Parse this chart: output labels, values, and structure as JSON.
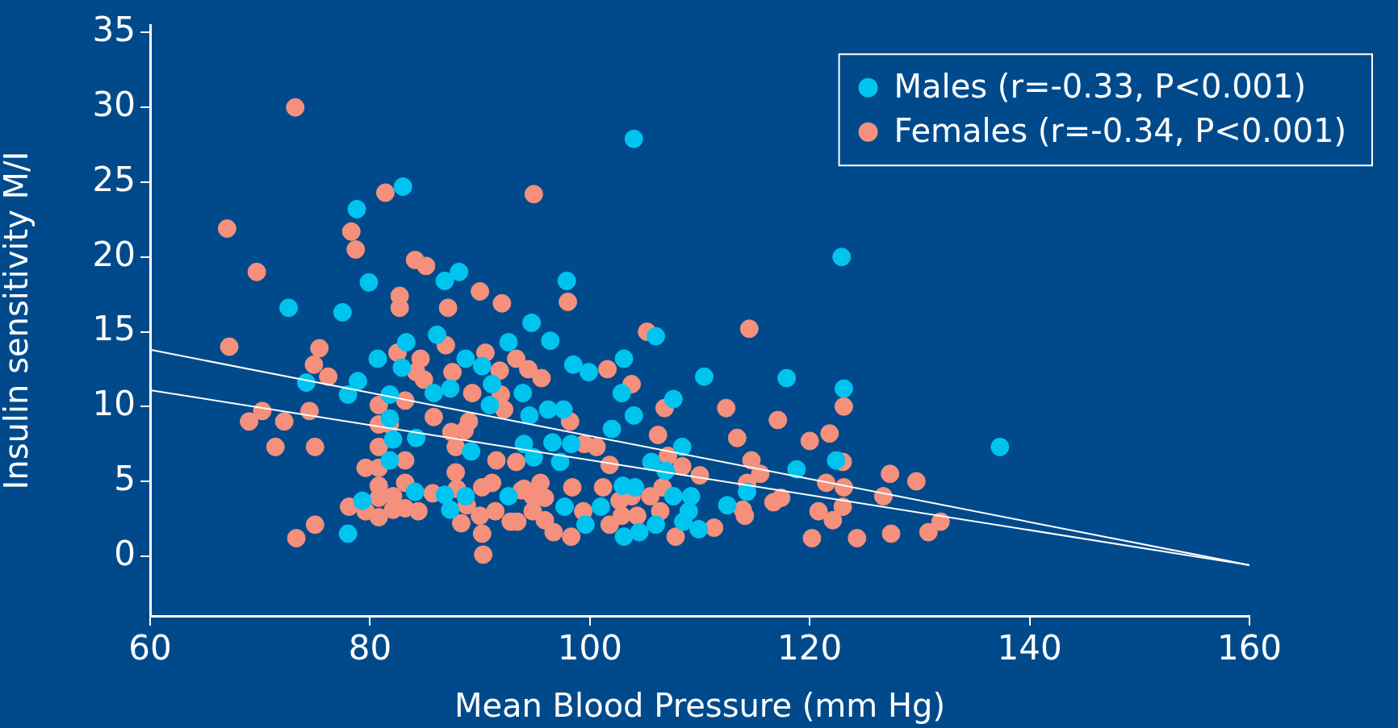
{
  "chart_data": {
    "type": "scatter",
    "xlabel": "Mean Blood Pressure (mm Hg)",
    "ylabel": "Insulin sensitivity M/I",
    "xlim": [
      60,
      160
    ],
    "xticks": [
      60,
      80,
      100,
      120,
      140,
      160
    ],
    "ylim": [
      -4,
      35.5
    ],
    "yticks": [
      0,
      5,
      10,
      15,
      20,
      25,
      30,
      35
    ],
    "grid": false,
    "legend": "top right",
    "marker": "circle",
    "series": [
      {
        "name": "Males (r=-0.33, P<0.001)",
        "color": "#00c4f0",
        "x": [
          83.0,
          78.8,
          104.0,
          122.9,
          137.3,
          72.6,
          77.5,
          79.9,
          88.1,
          86.8,
          97.9,
          74.2,
          78.9,
          78.0,
          80.7,
          81.8,
          82.9,
          83.3,
          86.1,
          88.7,
          90.2,
          91.1,
          92.6,
          94.7,
          96.4,
          87.3,
          85.8,
          93.9,
          90.9,
          94.5,
          96.2,
          97.6,
          98.5,
          99.9,
          103.1,
          102.9,
          106.0,
          107.6,
          110.4,
          117.9,
          123.1,
          122.4,
          118.8,
          114.3,
          112.5,
          109.2,
          109.0,
          108.5,
          109.9,
          108.4,
          106.9,
          105.6,
          107.6,
          106.0,
          104.5,
          103.1,
          104.1,
          103.0,
          104.0,
          102.0,
          101.0,
          99.6,
          97.7,
          97.3,
          96.6,
          98.3,
          94.9,
          94.0,
          92.6,
          89.2,
          88.7,
          87.3,
          84.1,
          84.2,
          82.1,
          81.8,
          81.8,
          79.3,
          78.0,
          86.8
        ],
        "values": [
          24.7,
          23.2,
          27.9,
          20.0,
          7.3,
          16.6,
          16.3,
          18.3,
          19.0,
          18.4,
          18.4,
          11.6,
          11.7,
          10.8,
          13.2,
          10.8,
          12.6,
          14.3,
          14.8,
          13.2,
          12.7,
          11.5,
          14.3,
          15.6,
          14.4,
          11.2,
          10.9,
          10.9,
          10.1,
          9.4,
          9.8,
          9.8,
          12.8,
          12.3,
          13.2,
          10.9,
          14.7,
          10.5,
          12.0,
          11.9,
          11.2,
          6.4,
          5.8,
          4.3,
          3.4,
          4.0,
          3.0,
          2.3,
          1.8,
          7.3,
          5.7,
          6.3,
          4.0,
          2.1,
          1.6,
          1.3,
          4.6,
          4.7,
          9.4,
          8.5,
          3.3,
          2.1,
          3.3,
          6.3,
          7.6,
          7.5,
          6.6,
          7.5,
          4.0,
          7.0,
          4.0,
          3.1,
          4.3,
          7.9,
          7.8,
          6.4,
          9.2,
          3.7,
          1.5,
          4.1
        ]
      },
      {
        "name": "Females (r=-0.34, P<0.001)",
        "color": "#f4907c",
        "x": [
          73.2,
          67.0,
          69.7,
          67.2,
          69.0,
          70.2,
          71.4,
          72.2,
          74.5,
          75.0,
          73.3,
          75.0,
          74.9,
          75.4,
          76.2,
          78.3,
          78.7,
          81.4,
          82.7,
          82.7,
          82.5,
          84.1,
          85.1,
          84.2,
          84.6,
          84.9,
          83.2,
          85.8,
          86.9,
          87.1,
          87.5,
          87.4,
          88.6,
          89.0,
          89.3,
          90.0,
          90.5,
          91.8,
          92.0,
          91.9,
          92.2,
          93.3,
          94.4,
          95.6,
          94.9,
          98.0,
          98.2,
          99.5,
          100.6,
          101.8,
          101.6,
          103.8,
          105.2,
          106.8,
          106.2,
          107.1,
          108.4,
          110.0,
          112.4,
          113.4,
          114.5,
          114.7,
          115.5,
          114.3,
          117.1,
          117.4,
          116.7,
          120.0,
          121.8,
          123.1,
          123.0,
          123.1,
          123.0,
          121.5,
          120.8,
          122.1,
          120.2,
          124.3,
          126.7,
          127.3,
          129.7,
          127.4,
          130.8,
          131.9,
          114.1,
          113.9,
          111.3,
          107.8,
          106.6,
          106.4,
          105.5,
          104.3,
          103.8,
          102.7,
          102.9,
          101.8,
          101.2,
          99.4,
          98.4,
          98.3,
          96.7,
          95.9,
          95.9,
          95.5,
          94.8,
          94.8,
          94.0,
          93.4,
          92.8,
          93.3,
          93.8,
          91.5,
          91.1,
          91.4,
          90.2,
          90.0,
          90.2,
          90.3,
          88.8,
          88.3,
          87.8,
          87.9,
          87.8,
          85.7,
          84.4,
          83.2,
          83.2,
          83.2,
          82.1,
          82.1,
          81.8,
          80.8,
          80.8,
          80.8,
          80.8,
          80.8,
          79.6,
          79.6,
          78.1,
          80.8,
          80.8
        ],
        "values": [
          30.0,
          21.9,
          19.0,
          14.0,
          9.0,
          9.7,
          7.3,
          9.0,
          9.7,
          7.3,
          1.2,
          2.1,
          12.8,
          13.9,
          12.0,
          21.7,
          20.5,
          24.3,
          17.4,
          16.6,
          13.6,
          19.8,
          19.4,
          12.3,
          13.2,
          11.8,
          10.4,
          9.3,
          14.1,
          16.6,
          12.3,
          8.3,
          8.4,
          9.0,
          10.9,
          17.7,
          13.6,
          12.4,
          16.9,
          10.8,
          9.8,
          13.2,
          12.5,
          11.9,
          24.2,
          17.0,
          9.0,
          7.5,
          7.3,
          6.1,
          12.5,
          11.5,
          15.0,
          9.9,
          8.1,
          6.7,
          6.0,
          5.4,
          9.9,
          7.9,
          15.2,
          6.4,
          5.5,
          4.9,
          9.1,
          3.9,
          3.6,
          7.7,
          8.2,
          10.0,
          6.3,
          4.6,
          3.3,
          4.9,
          3.0,
          2.4,
          1.2,
          1.2,
          4.0,
          5.5,
          5.0,
          1.5,
          1.6,
          2.3,
          2.7,
          3.1,
          1.9,
          1.3,
          4.6,
          3.0,
          4.0,
          2.7,
          4.0,
          3.7,
          2.7,
          2.1,
          4.6,
          3.0,
          4.6,
          1.3,
          1.6,
          2.4,
          3.9,
          4.9,
          4.0,
          3.0,
          4.5,
          2.3,
          2.3,
          6.3,
          4.4,
          6.4,
          4.9,
          3.0,
          4.6,
          2.7,
          1.5,
          0.1,
          3.4,
          2.2,
          5.6,
          4.5,
          7.3,
          4.2,
          3.0,
          3.2,
          4.9,
          6.4,
          4.0,
          3.1,
          8.8,
          7.3,
          5.9,
          4.7,
          3.9,
          2.6,
          5.9,
          3.0,
          3.3,
          10.1,
          8.8
        ]
      },
      {
        "type": "line",
        "marker": "none",
        "color": "#ffffff",
        "x": [
          60,
          160
        ],
        "values": [
          13.8,
          -0.6
        ]
      },
      {
        "type": "line",
        "marker": "none",
        "color": "#ffffff",
        "x": [
          60,
          160
        ],
        "values": [
          11.1,
          -0.6
        ]
      }
    ]
  }
}
